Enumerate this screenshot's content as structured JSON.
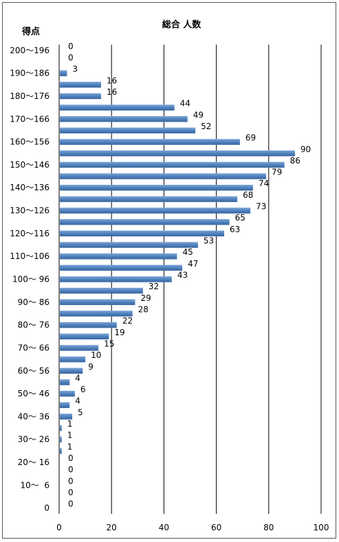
{
  "chart_data": {
    "type": "bar",
    "orientation": "horizontal",
    "title": "総合 人数",
    "ylabel": "得点",
    "xlabel": "",
    "xlim": [
      0,
      100
    ],
    "x_ticks": [
      "0",
      "20",
      "40",
      "60",
      "80",
      "100"
    ],
    "category_labels": [
      "200〜196",
      "190〜186",
      "180〜176",
      "170〜166",
      "160〜156",
      "150〜146",
      "140〜136",
      "130〜126",
      "120〜116",
      "110〜106",
      "100〜 96",
      "90〜 86",
      "80〜 76",
      "70〜 66",
      "60〜 56",
      "50〜 46",
      "40〜 36",
      "30〜 26",
      "20〜 16",
      "10〜  6",
      "0"
    ],
    "values": [
      0,
      0,
      3,
      16,
      16,
      44,
      49,
      52,
      69,
      90,
      86,
      79,
      74,
      68,
      73,
      65,
      63,
      53,
      45,
      47,
      43,
      32,
      29,
      28,
      22,
      19,
      15,
      10,
      9,
      4,
      6,
      4,
      5,
      1,
      1,
      1,
      0,
      0,
      0,
      0,
      0
    ],
    "bar_color": "#4f81bd",
    "grid": true
  }
}
